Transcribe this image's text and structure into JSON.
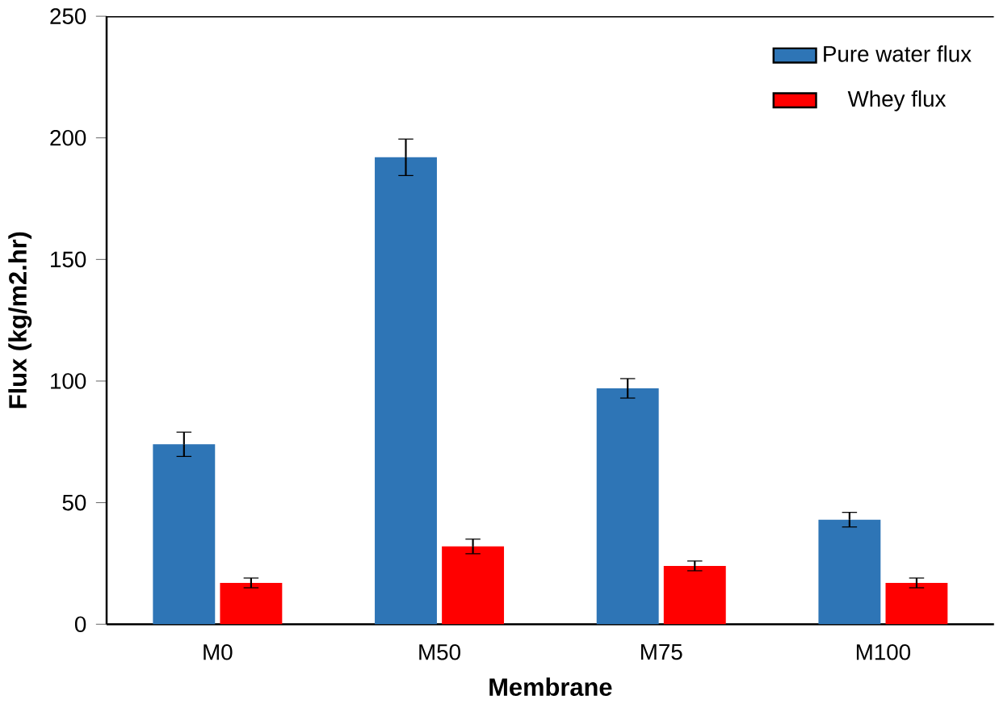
{
  "chart_data": {
    "type": "bar",
    "xlabel": "Membrane",
    "ylabel": "Flux (kg/m2.hr)",
    "categories": [
      "M0",
      "M50",
      "M75",
      "M100"
    ],
    "series": [
      {
        "name": "Pure water flux",
        "color": "#2e75b6",
        "values": [
          74,
          192,
          97,
          43
        ],
        "errors": [
          5,
          7.5,
          4,
          3
        ]
      },
      {
        "name": "Whey flux",
        "color": "#ff0000",
        "values": [
          17,
          32,
          24,
          17
        ],
        "errors": [
          2,
          3,
          2,
          2
        ]
      }
    ],
    "ylim": [
      0,
      250
    ],
    "yticks": [
      0,
      50,
      100,
      150,
      200,
      250
    ],
    "grid": false,
    "legend": "top right"
  }
}
